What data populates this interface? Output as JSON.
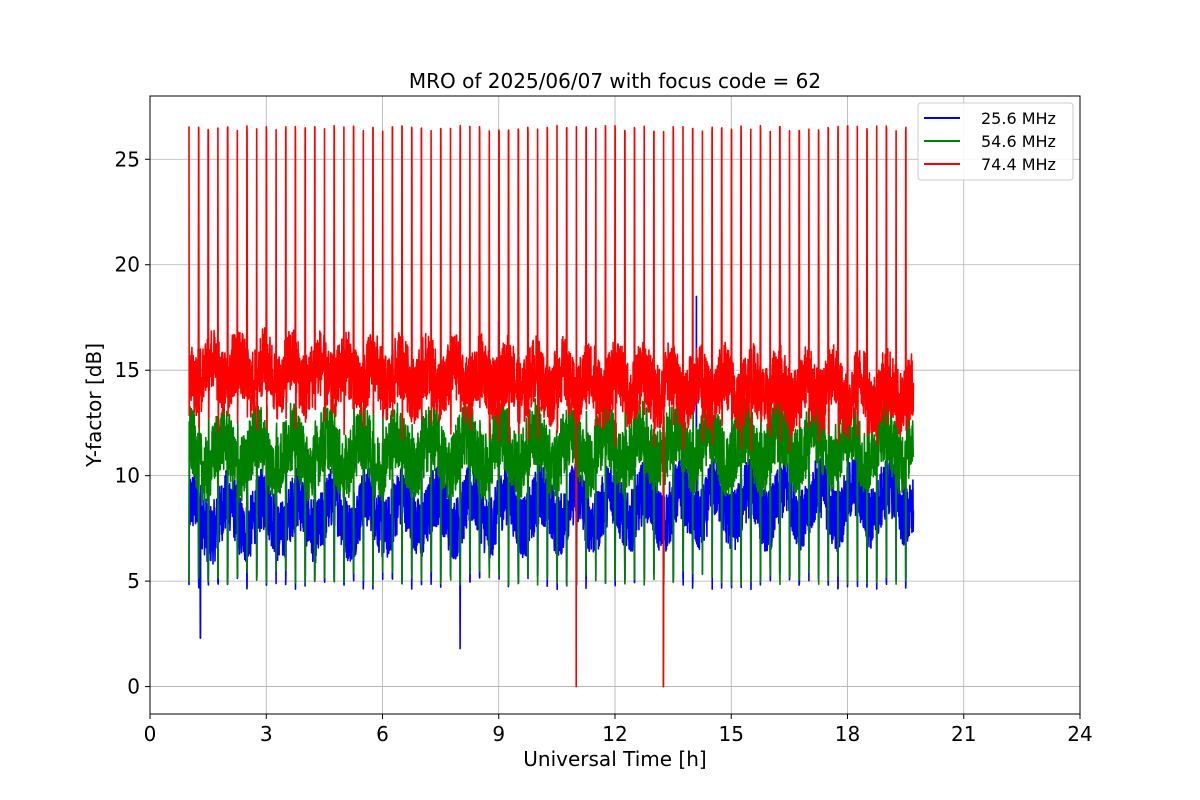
{
  "chart_data": {
    "type": "line",
    "title": "MRO of 2025/06/07 with focus code = 62",
    "xlabel": "Universal Time [h]",
    "ylabel": "Y-factor [dB]",
    "xlim": [
      0,
      24
    ],
    "ylim": [
      -1.3,
      28
    ],
    "x_ticks": [
      0,
      3,
      6,
      9,
      12,
      15,
      18,
      21,
      24
    ],
    "y_ticks": [
      0,
      5,
      10,
      15,
      20,
      25
    ],
    "grid": true,
    "legend_position": "top-right",
    "x_range": [
      1.0,
      19.7
    ],
    "spike_period_hours": 0.25,
    "series": [
      {
        "name": "25.6 MHz",
        "color": "#0000ff",
        "baseline": 8.0,
        "baseline_end": 8.8,
        "dips_min": 4.6,
        "notable_points": [
          {
            "x": 1.3,
            "y": 2.3
          },
          {
            "x": 8.0,
            "y": 1.8
          },
          {
            "x": 9.0,
            "y": 17.3
          },
          {
            "x": 14.1,
            "y": 18.5
          },
          {
            "x": 14.5,
            "y": 17.0
          }
        ]
      },
      {
        "name": "54.6 MHz",
        "color": "#008000",
        "baseline": 11.0,
        "baseline_end": 11.5,
        "dips_min": 4.8,
        "notable_points": [
          {
            "x": 13.25,
            "y": 0.0
          }
        ]
      },
      {
        "name": "74.4 MHz",
        "color": "#ff0000",
        "baseline": 15.0,
        "baseline_end": 13.9,
        "spike_peak": 26.6,
        "notable_points": [
          {
            "x": 11.0,
            "y": 0.0
          },
          {
            "x": 13.25,
            "y": 0.0
          }
        ]
      }
    ]
  }
}
